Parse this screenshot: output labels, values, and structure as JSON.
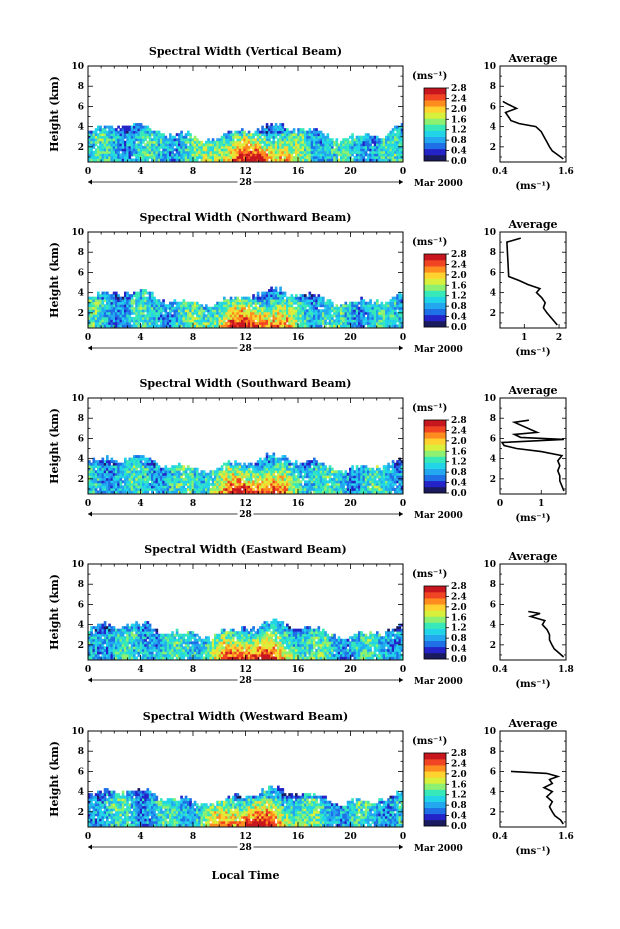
{
  "figure": {
    "date_label": "Mar 2000",
    "day_label": "28",
    "xlabel": "Local Time",
    "ylabel": "Height (km)",
    "colorbar_unit": "(ms⁻¹)",
    "avg_title": "Average",
    "avg_xunit": "(ms⁻¹)",
    "time_ticks": [
      "0",
      "4",
      "8",
      "12",
      "16",
      "20",
      "0"
    ],
    "height_ticks": [
      "2",
      "4",
      "6",
      "8",
      "10"
    ],
    "colorbar_ticks": [
      "0.0",
      "0.4",
      "0.8",
      "1.2",
      "1.6",
      "2.0",
      "2.4",
      "2.8"
    ],
    "colorbar_colors": [
      "#1a1a5e",
      "#2323c8",
      "#1f6fe6",
      "#23a8f0",
      "#22d4e8",
      "#37e8b8",
      "#8ef070",
      "#d8f03c",
      "#ffd230",
      "#ff8c1e",
      "#f04422",
      "#c8161e"
    ]
  },
  "chart_data": [
    {
      "type": "heatmap",
      "title": "Spectral Width (Vertical Beam)",
      "x_range": [
        0,
        24
      ],
      "y_range": [
        0.5,
        10
      ],
      "c_range": [
        0,
        2.8
      ],
      "average_profile": {
        "title": "Average",
        "xticks": [
          "0.4",
          "1.6"
        ],
        "xlim": [
          0.4,
          1.6
        ],
        "ylim": [
          0.5,
          10
        ],
        "height": [
          0.8,
          1.2,
          1.6,
          2.0,
          2.5,
          3.0,
          3.5,
          4.0,
          4.3,
          4.6,
          5.0,
          5.4,
          5.8,
          6.2,
          6.5
        ],
        "width": [
          1.55,
          1.45,
          1.35,
          1.3,
          1.25,
          1.2,
          1.15,
          1.05,
          0.75,
          0.6,
          0.55,
          0.5,
          0.7,
          0.55,
          0.45
        ]
      }
    },
    {
      "type": "heatmap",
      "title": "Spectral Width (Northward Beam)",
      "x_range": [
        0,
        24
      ],
      "y_range": [
        0.5,
        10
      ],
      "c_range": [
        0,
        2.8
      ],
      "average_profile": {
        "title": "Average",
        "xticks": [
          "1",
          "2"
        ],
        "xlim": [
          0.3,
          2.2
        ],
        "ylim": [
          0.5,
          10
        ],
        "height": [
          0.8,
          1.2,
          1.6,
          2.0,
          2.5,
          3.0,
          3.5,
          4.0,
          4.4,
          4.8,
          5.2,
          5.6,
          9.0,
          9.4
        ],
        "width": [
          1.95,
          1.85,
          1.75,
          1.65,
          1.55,
          1.6,
          1.5,
          1.35,
          1.45,
          1.1,
          0.85,
          0.55,
          0.5,
          0.9
        ]
      }
    },
    {
      "type": "heatmap",
      "title": "Spectral Width (Southward Beam)",
      "x_range": [
        0,
        24
      ],
      "y_range": [
        0.5,
        10
      ],
      "c_range": [
        0,
        2.8
      ],
      "average_profile": {
        "title": "Average",
        "xticks": [
          "0",
          "1"
        ],
        "xlim": [
          0,
          1.6
        ],
        "ylim": [
          0.5,
          10
        ],
        "height": [
          0.8,
          1.3,
          1.8,
          2.3,
          2.8,
          3.3,
          3.8,
          4.3,
          4.7,
          5.0,
          5.3,
          5.6,
          5.9,
          6.1,
          6.4,
          6.6,
          7.6,
          7.8
        ],
        "width": [
          1.55,
          1.5,
          1.45,
          1.45,
          1.4,
          1.45,
          1.4,
          1.5,
          1.0,
          0.4,
          0.1,
          0.05,
          1.55,
          0.5,
          0.35,
          0.9,
          0.35,
          0.7
        ]
      }
    },
    {
      "type": "heatmap",
      "title": "Spectral Width (Eastward Beam)",
      "x_range": [
        0,
        24
      ],
      "y_range": [
        0.5,
        10
      ],
      "c_range": [
        0,
        2.8
      ],
      "average_profile": {
        "title": "Average",
        "xticks": [
          "0.4",
          "1.8"
        ],
        "xlim": [
          0.4,
          1.8
        ],
        "ylim": [
          0.5,
          10
        ],
        "height": [
          0.8,
          1.2,
          1.6,
          2.0,
          2.5,
          3.0,
          3.5,
          4.0,
          4.4,
          4.8,
          5.1,
          5.3
        ],
        "width": [
          1.75,
          1.65,
          1.55,
          1.5,
          1.45,
          1.45,
          1.4,
          1.3,
          1.35,
          1.05,
          1.25,
          1.0
        ]
      }
    },
    {
      "type": "heatmap",
      "title": "Spectral Width (Westward Beam)",
      "x_range": [
        0,
        24
      ],
      "y_range": [
        0.5,
        10
      ],
      "c_range": [
        0,
        2.8
      ],
      "average_profile": {
        "title": "Average",
        "xticks": [
          "0.4",
          "1.6"
        ],
        "xlim": [
          0.4,
          1.6
        ],
        "ylim": [
          0.5,
          10
        ],
        "height": [
          0.8,
          1.2,
          1.6,
          2.0,
          2.5,
          3.0,
          3.5,
          4.0,
          4.4,
          4.8,
          5.2,
          5.5,
          5.8,
          6.0
        ],
        "width": [
          1.55,
          1.5,
          1.4,
          1.35,
          1.3,
          1.35,
          1.25,
          1.35,
          1.2,
          1.35,
          1.3,
          1.45,
          1.25,
          0.6
        ]
      }
    }
  ]
}
